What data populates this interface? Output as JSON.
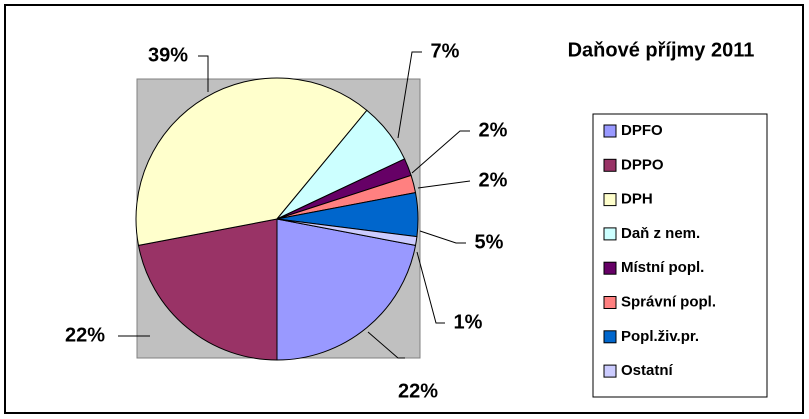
{
  "chart_data": {
    "type": "pie",
    "title": "Daňové příjmy 2011",
    "categories": [
      "DPFO",
      "DPPO",
      "DPH",
      "Daň z nem.",
      "Místní popl.",
      "Správní popl.",
      "Popl.živ.pr.",
      "Ostatní"
    ],
    "values": [
      22,
      22,
      39,
      7,
      2,
      2,
      5,
      1
    ],
    "value_labels": [
      "22%",
      "22%",
      "39%",
      "7%",
      "2%",
      "2%",
      "5%",
      "1%"
    ],
    "colors": [
      "#9999ff",
      "#993366",
      "#ffffcc",
      "#ccffff",
      "#660066",
      "#ff8080",
      "#0066cc",
      "#ccccff"
    ],
    "legend": "right"
  }
}
